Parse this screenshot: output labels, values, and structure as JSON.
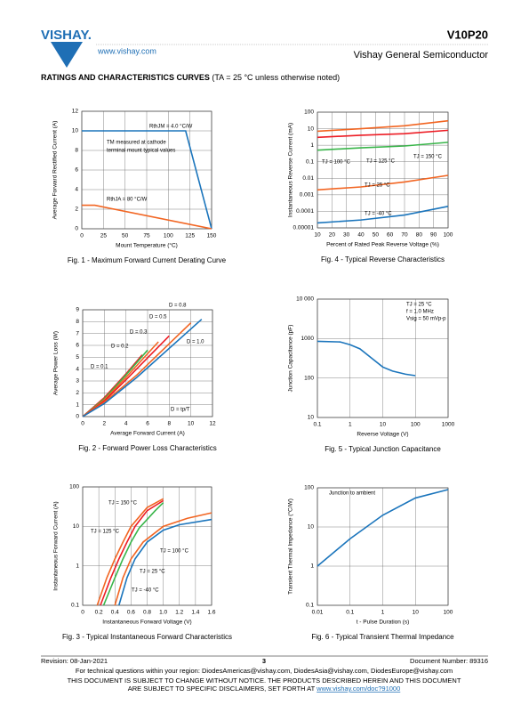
{
  "header": {
    "logo": "VISHAY.",
    "url": "www.vishay.com",
    "part": "V10P20",
    "subtitle": "Vishay General Semiconductor"
  },
  "heading": {
    "title": "RATINGS AND CHARACTERISTICS CURVES",
    "note": "(TA = 25 °C unless otherwise noted)"
  },
  "chart_data": [
    {
      "type": "line",
      "title": "Fig. 1 - Maximum Forward Current Derating Curve",
      "x_label": "Mount Temperature (°C)",
      "y_label": "Average Forward Rectified Current (A)",
      "xlim": [
        0,
        150
      ],
      "ylim": [
        0,
        12
      ],
      "xticks": [
        0,
        25,
        50,
        75,
        100,
        125,
        150
      ],
      "yticks": [
        0,
        2,
        4,
        6,
        8,
        10,
        12
      ],
      "grid": true,
      "annotations": [
        "RthJM = 4.0 °C/W",
        "TM measured at cathode",
        "terminal mount typical values",
        "RthJA = 80 °C/W"
      ],
      "series": [
        {
          "color": "#1b75bc",
          "x": [
            0,
            120,
            150
          ],
          "values": [
            10,
            10,
            0
          ]
        },
        {
          "color": "#f26522",
          "x": [
            0,
            15,
            150
          ],
          "values": [
            2.4,
            2.4,
            0
          ]
        }
      ]
    },
    {
      "type": "line",
      "title": "Fig. 4 - Typical Reverse Characteristics",
      "x_label": "Percent of Rated Peak Reverse Voltage (%)",
      "y_label": "Instantaneous Reverse Current (mA)",
      "xlim": [
        10,
        100
      ],
      "ylim": [
        1e-05,
        100
      ],
      "yscale": "log",
      "xticks": [
        10,
        20,
        30,
        40,
        50,
        60,
        70,
        80,
        90,
        100
      ],
      "yticks": [
        {
          "value": 1e-05,
          "label": "0.00001"
        },
        0.0001,
        0.001,
        0.01,
        0.1,
        1,
        10,
        100
      ],
      "grid": true,
      "annotations": [
        "TJ = 150 °C",
        "TJ = 125 °C",
        "TJ = 100 °C",
        "TJ = 25 °C",
        "TJ = -40 °C"
      ],
      "series": [
        {
          "color": "#f26522",
          "x": [
            10,
            40,
            70,
            100
          ],
          "values": [
            7,
            10,
            15,
            30
          ]
        },
        {
          "color": "#ed1c24",
          "x": [
            10,
            40,
            70,
            100
          ],
          "values": [
            3,
            4,
            5,
            8
          ]
        },
        {
          "color": "#39b54a",
          "x": [
            10,
            40,
            70,
            100
          ],
          "values": [
            0.5,
            0.7,
            0.9,
            1.5
          ]
        },
        {
          "color": "#f26522",
          "x": [
            10,
            40,
            70,
            100
          ],
          "values": [
            0.002,
            0.003,
            0.006,
            0.015
          ]
        },
        {
          "color": "#1b75bc",
          "x": [
            10,
            40,
            70,
            100
          ],
          "values": [
            2e-05,
            3e-05,
            6e-05,
            0.0002
          ]
        }
      ]
    },
    {
      "type": "line",
      "title": "Fig. 2 - Forward Power Loss Characteristics",
      "x_label": "Average Forward Current (A)",
      "y_label": "Average Power Loss (W)",
      "xlim": [
        0,
        12
      ],
      "ylim": [
        0,
        9
      ],
      "xticks": [
        0,
        2,
        4,
        6,
        8,
        10,
        12
      ],
      "yticks": [
        0,
        1,
        2,
        3,
        4,
        5,
        6,
        7,
        8,
        9
      ],
      "grid": true,
      "annotations": [
        "D = 0.8",
        "D = 0.5",
        "D = 0.3",
        "D = 0.2",
        "D = 0.1",
        "D = 1.0",
        "D = tp/T"
      ],
      "series": [
        {
          "color": "#ed1c24",
          "x": [
            0,
            2,
            4,
            5.5
          ],
          "values": [
            0,
            1.6,
            3.6,
            5.2
          ]
        },
        {
          "color": "#39b54a",
          "x": [
            0,
            2,
            4,
            6
          ],
          "values": [
            0,
            1.5,
            3.5,
            5.6
          ]
        },
        {
          "color": "#f26522",
          "x": [
            0,
            2,
            4,
            7
          ],
          "values": [
            0,
            1.4,
            3.3,
            6.3
          ]
        },
        {
          "color": "#ed1c24",
          "x": [
            0,
            2,
            4,
            8
          ],
          "values": [
            0,
            1.3,
            3.1,
            6.8
          ]
        },
        {
          "color": "#f26522",
          "x": [
            0,
            2,
            5,
            10
          ],
          "values": [
            0,
            1.2,
            3.5,
            7.9
          ]
        },
        {
          "color": "#1b75bc",
          "x": [
            0,
            2,
            5,
            11
          ],
          "values": [
            0,
            1.1,
            3.3,
            8.2
          ]
        }
      ]
    },
    {
      "type": "line",
      "title": "Fig. 5 - Typical Junction Capacitance",
      "x_label": "Reverse Voltage (V)",
      "y_label": "Junction Capacitance (pF)",
      "xlim": [
        0.1,
        1000
      ],
      "ylim": [
        10,
        10000
      ],
      "xscale": "log",
      "yscale": "log",
      "xticks": [
        0.1,
        1,
        10,
        100,
        1000
      ],
      "yticks": [
        10,
        100,
        1000,
        {
          "value": 10000,
          "label": "10 000"
        }
      ],
      "grid": true,
      "annotations": [
        "TJ = 25 °C",
        "f = 1.0 MHz",
        "Vsig = 50 mVp-p"
      ],
      "series": [
        {
          "color": "#1b75bc",
          "x": [
            0.1,
            0.5,
            1,
            2,
            5,
            10,
            20,
            50,
            100
          ],
          "values": [
            850,
            820,
            700,
            550,
            300,
            190,
            150,
            125,
            115
          ]
        }
      ]
    },
    {
      "type": "line",
      "title": "Fig. 3 - Typical Instantaneous Forward Characteristics",
      "x_label": "Instantaneous Forward Voltage (V)",
      "y_label": "Instantaneous Forward Current (A)",
      "xlim": [
        0,
        1.6
      ],
      "ylim": [
        0.1,
        100
      ],
      "yscale": "log",
      "xticks": [
        0,
        0.2,
        0.4,
        0.6,
        0.8,
        {
          "value": 1,
          "label": "1.0"
        },
        1.2,
        1.4,
        1.6
      ],
      "yticks": [
        0.1,
        1,
        10,
        100
      ],
      "grid": true,
      "annotations": [
        "TJ = 150 °C",
        "TJ = 125 °C",
        "TJ = 100 °C",
        "TJ = 25 °C",
        "TJ = -40 °C"
      ],
      "series": [
        {
          "color": "#f26522",
          "x": [
            0.18,
            0.3,
            0.4,
            0.5,
            0.6,
            0.8,
            1.0
          ],
          "values": [
            0.1,
            0.5,
            1.5,
            4,
            10,
            30,
            50
          ]
        },
        {
          "color": "#ed1c24",
          "x": [
            0.22,
            0.35,
            0.45,
            0.55,
            0.65,
            0.8,
            1.0
          ],
          "values": [
            0.1,
            0.5,
            1.5,
            4,
            10,
            25,
            45
          ]
        },
        {
          "color": "#39b54a",
          "x": [
            0.26,
            0.4,
            0.5,
            0.6,
            0.7,
            0.9,
            1.0
          ],
          "values": [
            0.1,
            0.5,
            1.5,
            4,
            9,
            25,
            40
          ]
        },
        {
          "color": "#1b75bc",
          "x": [
            0.45,
            0.55,
            0.65,
            0.8,
            1.0,
            1.2,
            1.6
          ],
          "values": [
            0.1,
            0.5,
            1.5,
            4,
            8,
            11,
            15
          ]
        },
        {
          "color": "#f26522",
          "x": [
            0.4,
            0.5,
            0.6,
            0.75,
            1.0,
            1.3,
            1.6
          ],
          "values": [
            0.1,
            0.5,
            1.5,
            4,
            10,
            16,
            22
          ]
        }
      ]
    },
    {
      "type": "line",
      "title": "Fig. 6 - Typical Transient Thermal Impedance",
      "x_label": "t - Pulse Duration (s)",
      "y_label": "Transient Thermal Impedance (°C/W)",
      "xlim": [
        0.01,
        100
      ],
      "ylim": [
        0.1,
        100
      ],
      "xscale": "log",
      "yscale": "log",
      "xticks": [
        0.01,
        0.1,
        1,
        10,
        100
      ],
      "yticks": [
        0.1,
        1,
        10,
        100
      ],
      "grid": true,
      "annotations": [
        "Junction to ambient"
      ],
      "series": [
        {
          "color": "#1b75bc",
          "x": [
            0.01,
            0.1,
            1,
            10,
            100
          ],
          "values": [
            1,
            5,
            20,
            55,
            90
          ]
        }
      ]
    }
  ],
  "footer": {
    "revision": "Revision: 08-Jan-2021",
    "page": "3",
    "document": "Document Number: 89316",
    "questions": "For technical questions within your region: DiodesAmericas@vishay.com, DiodesAsia@vishay.com, DiodesEurope@vishay.com",
    "notice": "THIS DOCUMENT IS SUBJECT TO CHANGE WITHOUT NOTICE. THE PRODUCTS DESCRIBED HEREIN AND THIS DOCUMENT",
    "disclaimer": "ARE SUBJECT TO SPECIFIC DISCLAIMERS, SET FORTH AT",
    "link": "www.vishay.com/doc?91000"
  }
}
